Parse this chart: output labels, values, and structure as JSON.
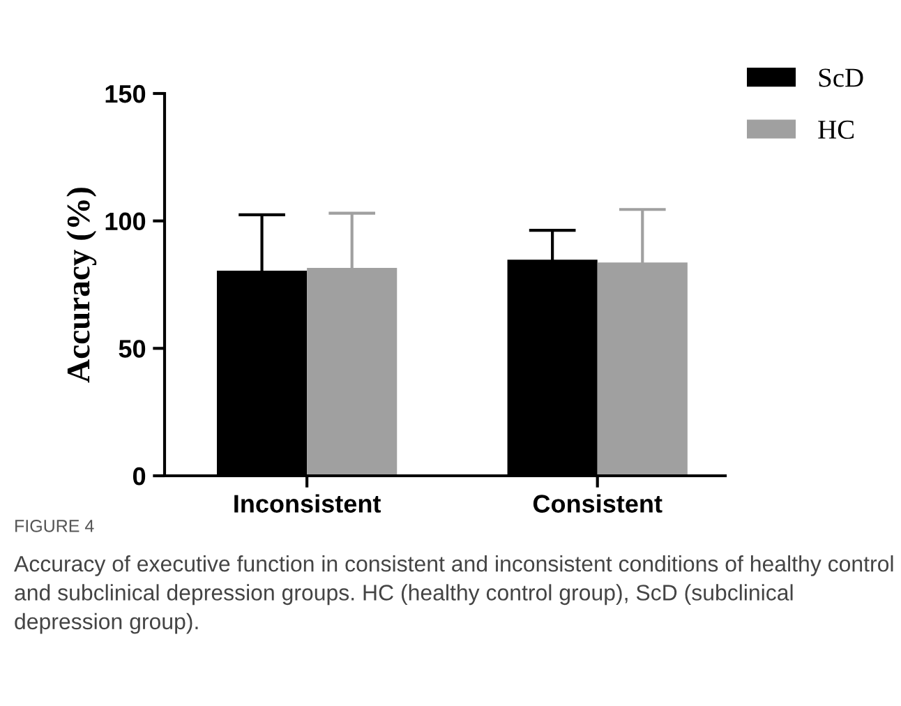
{
  "chart_data": {
    "type": "bar",
    "ylabel": "Accuracy (%)",
    "categories": [
      "Inconsistent",
      "Consistent"
    ],
    "series": [
      {
        "name": "ScD",
        "color": "#000000",
        "values": [
          80.5,
          84.8
        ],
        "errors": [
          21.9,
          11.5
        ]
      },
      {
        "name": "HC",
        "color": "#a0a0a0",
        "values": [
          81.6,
          83.7
        ],
        "errors": [
          21.4,
          20.8
        ]
      }
    ],
    "ylim": [
      0,
      150
    ],
    "yticks": [
      0,
      50,
      100,
      150
    ],
    "legend": "top right",
    "annotations": [
      "FIGURE 4",
      "Accuracy of executive function in consistent and inconsistent conditions of healthy control and subclinical depression groups. HC (healthy control group), ScD (subclinical depression group)."
    ]
  }
}
